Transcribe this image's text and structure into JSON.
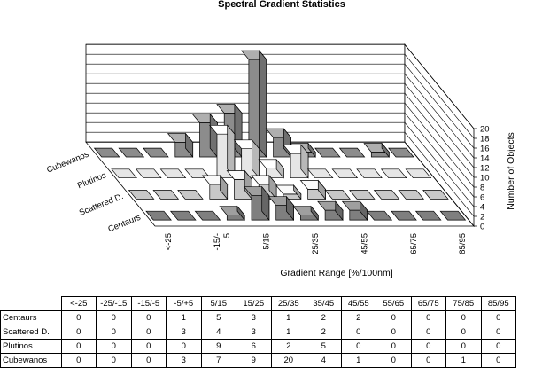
{
  "chart_data": {
    "type": "bar",
    "title": "Spectral Gradient Statistics",
    "xlabel": "Gradient Range [%/100nm]",
    "ylabel": "Number of Objects",
    "zlim": [
      0,
      20
    ],
    "z_ticks": [
      "0",
      "2",
      "4",
      "6",
      "8",
      "10",
      "12",
      "14",
      "16",
      "18",
      "20"
    ],
    "categories": [
      "<-25",
      "-25/-15",
      "-15/-5",
      "-5/+5",
      "5/15",
      "15/25",
      "25/35",
      "35/45",
      "45/55",
      "55/65",
      "65/75",
      "75/85",
      "85/95"
    ],
    "axis_tick_labels": [
      "<-25",
      "-15/-\n5",
      "5/15",
      "25/35",
      "45/55",
      "65/75",
      "85/95"
    ],
    "series": [
      {
        "name": "Centaurs",
        "values": [
          0,
          0,
          0,
          1,
          5,
          3,
          1,
          2,
          2,
          0,
          0,
          0,
          0
        ]
      },
      {
        "name": "Scattered D.",
        "values": [
          0,
          0,
          0,
          3,
          4,
          3,
          1,
          2,
          0,
          0,
          0,
          0,
          0
        ]
      },
      {
        "name": "Plutinos",
        "values": [
          0,
          0,
          0,
          0,
          9,
          6,
          2,
          5,
          0,
          0,
          0,
          0,
          0
        ]
      },
      {
        "name": "Cubewanos",
        "values": [
          0,
          0,
          0,
          3,
          7,
          9,
          20,
          4,
          1,
          0,
          0,
          1,
          0
        ]
      }
    ],
    "colors": [
      "#7f7f7f",
      "#c8c8c8",
      "#e6e6e6",
      "#8c8c8c"
    ]
  }
}
